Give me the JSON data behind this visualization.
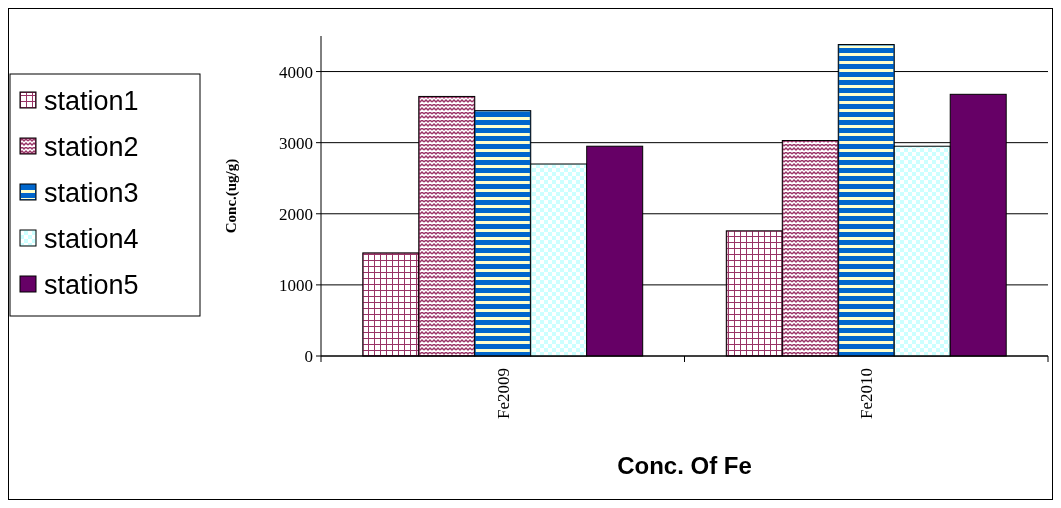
{
  "chart_data": {
    "type": "bar",
    "xlabel": "Conc. Of Fe",
    "ylabel": "Conc.(ug/g)",
    "categories": [
      "Fe2009",
      "Fe2010"
    ],
    "series": [
      {
        "name": "station1",
        "color": "#993366",
        "values": [
          1450,
          1760
        ]
      },
      {
        "name": "station2",
        "color": "#993366",
        "values": [
          3650,
          3030
        ]
      },
      {
        "name": "station3",
        "color": "#0066cc",
        "values": [
          3450,
          4380
        ]
      },
      {
        "name": "station4",
        "color": "#ccffff",
        "values": [
          2700,
          2950
        ]
      },
      {
        "name": "station5",
        "color": "#660066",
        "values": [
          2950,
          3680
        ]
      }
    ],
    "ylim": [
      0,
      4500
    ],
    "yticks": [
      0,
      1000,
      2000,
      3000,
      4000
    ],
    "grid": "y",
    "legend": "left"
  }
}
